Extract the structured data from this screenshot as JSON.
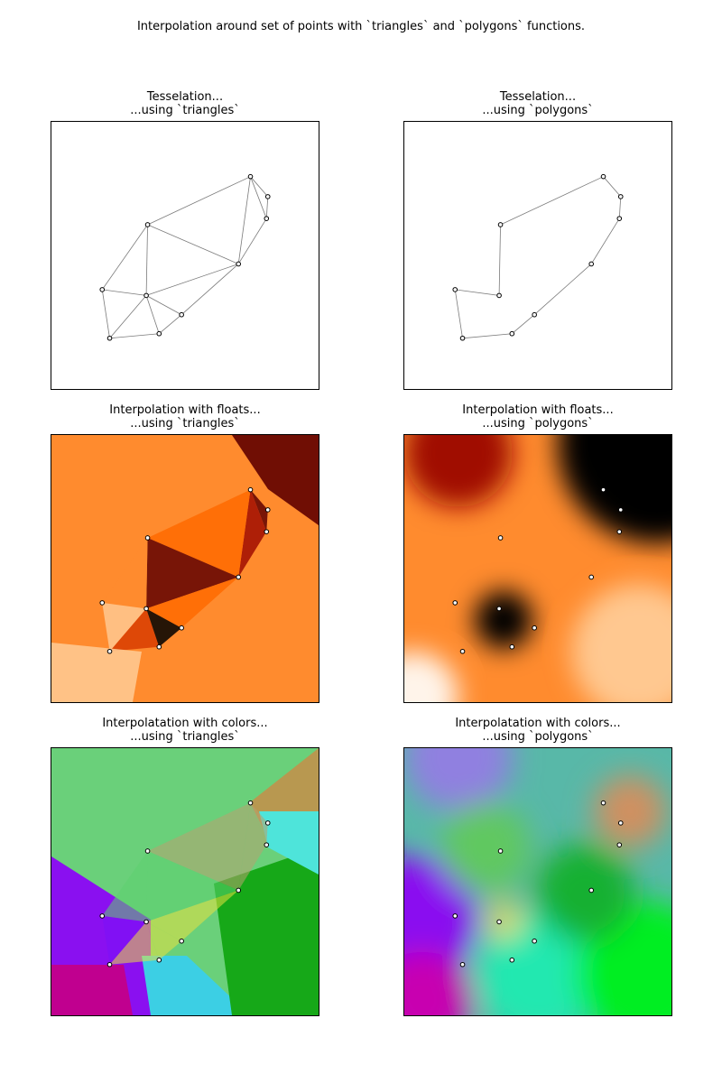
{
  "figure": {
    "title": "Interpolation around set of points with `triangles` and `polygons` functions."
  },
  "panels": [
    {
      "title_line1": "Tesselation...",
      "title_line2": "...using `triangles`",
      "kind": "tess-triangles"
    },
    {
      "title_line1": "Tesselation...",
      "title_line2": "...using `polygons`",
      "kind": "tess-polygons"
    },
    {
      "title_line1": "Interpolation with floats...",
      "title_line2": "...using `triangles`",
      "kind": "floats-triangles"
    },
    {
      "title_line1": "Interpolation with floats...",
      "title_line2": "...using `polygons`",
      "kind": "floats-polygons"
    },
    {
      "title_line1": "Interpolatation with colors...",
      "title_line2": "...using `triangles`",
      "kind": "colors-triangles"
    },
    {
      "title_line1": "Interpolatation with colors...",
      "title_line2": "...using `polygons`",
      "kind": "colors-polygons"
    }
  ],
  "chart_data": {
    "type": "scatter",
    "points": [
      {
        "x": 0.745,
        "y": 0.795
      },
      {
        "x": 0.81,
        "y": 0.72
      },
      {
        "x": 0.805,
        "y": 0.638
      },
      {
        "x": 0.7,
        "y": 0.468
      },
      {
        "x": 0.36,
        "y": 0.615
      },
      {
        "x": 0.19,
        "y": 0.372
      },
      {
        "x": 0.355,
        "y": 0.35
      },
      {
        "x": 0.487,
        "y": 0.278
      },
      {
        "x": 0.403,
        "y": 0.207
      },
      {
        "x": 0.218,
        "y": 0.19
      }
    ],
    "triangles": [
      [
        0,
        1,
        2
      ],
      [
        0,
        2,
        3
      ],
      [
        0,
        3,
        4
      ],
      [
        4,
        3,
        6
      ],
      [
        4,
        6,
        5
      ],
      [
        5,
        6,
        9
      ],
      [
        6,
        8,
        9
      ],
      [
        6,
        7,
        8
      ],
      [
        6,
        3,
        7
      ]
    ],
    "polygon_order": [
      0,
      1,
      2,
      3,
      7,
      8,
      9,
      5,
      6,
      4
    ],
    "point_colors": [
      "#b8a070",
      "#b89050",
      "#44e8e0",
      "#1ea81e",
      "#5cd070",
      "#7a10f8",
      "#e8e040",
      "#e85838",
      "#30d8e0",
      "#c80098"
    ],
    "float_colormap": [
      "#fff4ea",
      "#ffc890",
      "#ff8b2e",
      "#ff6a00",
      "#d83c00",
      "#a00c00",
      "#600000",
      "#000000"
    ],
    "xlim": [
      0,
      1
    ],
    "ylim": [
      0,
      1
    ],
    "axes_ticks_visible": false
  }
}
